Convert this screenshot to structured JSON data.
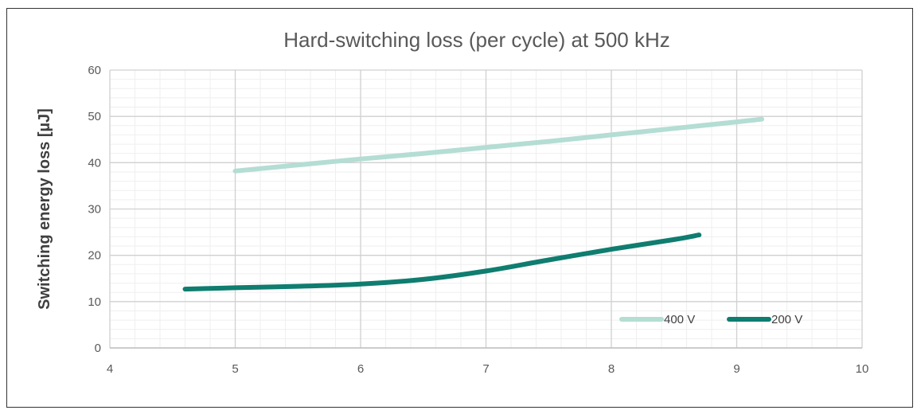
{
  "chart_data": {
    "type": "line",
    "title": "Hard-switching loss (per cycle) at 500 kHz",
    "xlabel": "",
    "ylabel": "Switching energy loss [µJ]",
    "xlim": [
      4,
      10
    ],
    "ylim": [
      0,
      60
    ],
    "xticks": [
      4,
      5,
      6,
      7,
      8,
      9,
      10
    ],
    "yticks": [
      0,
      10,
      20,
      30,
      40,
      50,
      60
    ],
    "grid": true,
    "legend_position": "bottom-right",
    "series": [
      {
        "name": "400 V",
        "color": "#b4ddd4",
        "points": [
          [
            5.0,
            38.2
          ],
          [
            5.5,
            39.5
          ],
          [
            6.0,
            40.8
          ],
          [
            6.5,
            42.0
          ],
          [
            7.0,
            43.3
          ],
          [
            7.5,
            44.6
          ],
          [
            8.0,
            46.0
          ],
          [
            8.5,
            47.4
          ],
          [
            9.0,
            48.8
          ],
          [
            9.2,
            49.4
          ]
        ]
      },
      {
        "name": "200 V",
        "color": "#0f7d70",
        "points": [
          [
            4.6,
            12.7
          ],
          [
            5.0,
            13.0
          ],
          [
            5.5,
            13.3
          ],
          [
            6.0,
            13.8
          ],
          [
            6.5,
            14.8
          ],
          [
            7.0,
            16.6
          ],
          [
            7.5,
            19.0
          ],
          [
            8.0,
            21.3
          ],
          [
            8.5,
            23.4
          ],
          [
            8.7,
            24.4
          ]
        ]
      }
    ]
  }
}
